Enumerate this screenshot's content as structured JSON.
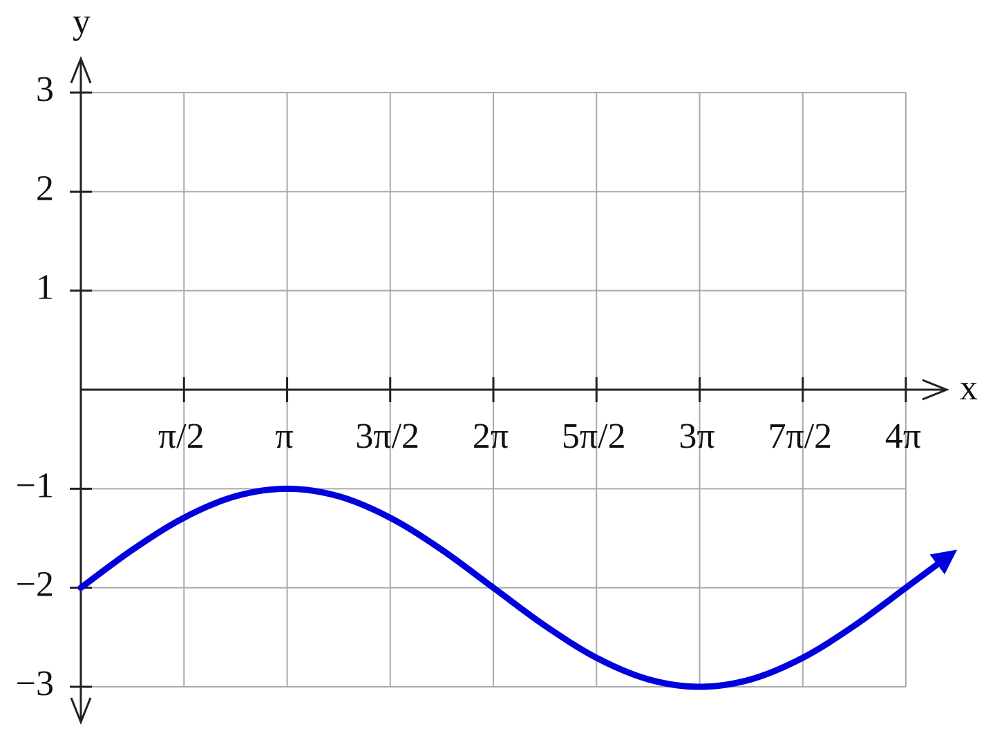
{
  "chart_data": {
    "type": "line",
    "x_label": "x",
    "y_label": "y",
    "x": [
      0,
      0.785,
      1.571,
      2.356,
      3.142,
      3.927,
      4.712,
      5.498,
      6.283,
      7.069,
      7.854,
      8.639,
      9.425,
      10.21,
      10.996,
      11.781,
      12.566,
      13.195
    ],
    "values": [
      -2,
      -1.617,
      -1.293,
      -1.076,
      -1,
      -1.076,
      -1.293,
      -1.617,
      -2,
      -2.383,
      -2.707,
      -2.924,
      -3,
      -2.924,
      -2.707,
      -2.383,
      -2,
      -1.69
    ],
    "color": "#0000dd",
    "xlim": [
      0,
      12.566
    ],
    "ylim": [
      -3,
      3
    ],
    "xticks": [
      {
        "value": 1.571,
        "label": "π/2"
      },
      {
        "value": 3.142,
        "label": "π"
      },
      {
        "value": 4.712,
        "label": "3π/2"
      },
      {
        "value": 6.283,
        "label": "2π"
      },
      {
        "value": 7.854,
        "label": "5π/2"
      },
      {
        "value": 9.425,
        "label": "3π"
      },
      {
        "value": 10.996,
        "label": "7π/2"
      },
      {
        "value": 12.566,
        "label": "4π"
      }
    ],
    "yticks": [
      {
        "value": -3,
        "label": "−3"
      },
      {
        "value": -2,
        "label": "−2"
      },
      {
        "value": -1,
        "label": "−1"
      },
      1,
      2,
      3
    ],
    "grid": true
  }
}
